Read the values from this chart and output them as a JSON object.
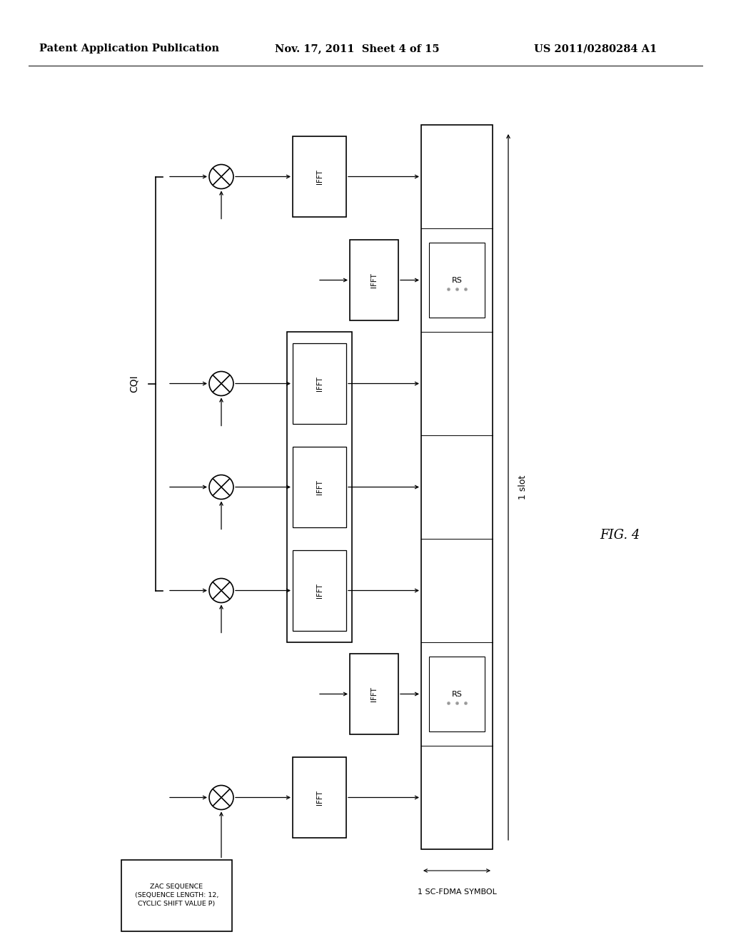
{
  "title_left": "Patent Application Publication",
  "title_mid": "Nov. 17, 2011  Sheet 4 of 15",
  "title_right": "US 2011/0280284 A1",
  "fig_label": "FIG. 4",
  "cqi_label": "CQI",
  "slot_label": "1 slot",
  "sc_fdma_label": "1 SC-FDMA SYMBOL",
  "rs_label": "RS",
  "zac_label": "ZAC SEQUENCE\n(SEQUENCE LENGTH: 12,\nCYCLIC SHIFT VALUE P)",
  "bg_color": "#ffffff"
}
